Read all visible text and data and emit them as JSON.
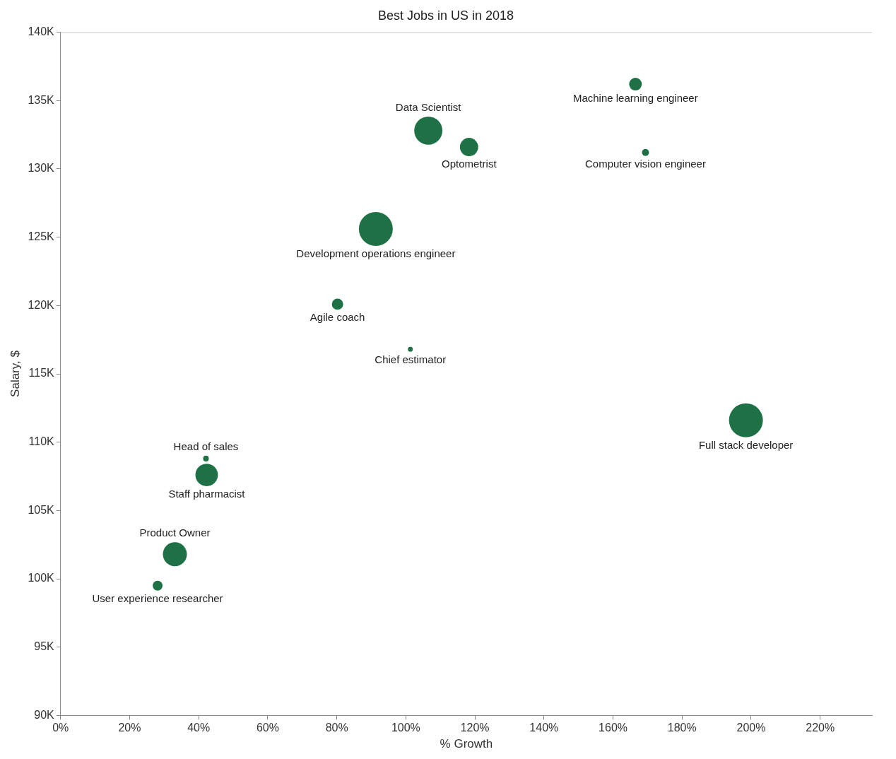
{
  "chart_data": {
    "type": "bubble",
    "title": "Best Jobs in US in 2018",
    "xlabel": "% Growth",
    "ylabel": "Salary, $",
    "series": [
      {
        "color": "#1e7145",
        "x": [
          106.5,
          118.3,
          166.5,
          169.4,
          91.3,
          80.2,
          101.3,
          198.5,
          42.1,
          42.3,
          33.1,
          28.1
        ],
        "values": [
          132.8,
          131.6,
          136.2,
          131.2,
          125.6,
          120.1,
          116.8,
          111.6,
          108.8,
          107.6,
          101.8,
          99.5
        ],
        "sizes": [
          0.69,
          0.29,
          0.14,
          0.043,
          1,
          0.11,
          0.021,
          1,
          0.028,
          0.44,
          0.5,
          0.085
        ]
      }
    ],
    "annotations": [
      {
        "text": "Data Scientist",
        "x": 106.5,
        "y": 132.8
      },
      {
        "text": "Optometrist",
        "x": 118.3,
        "y": 131.6
      },
      {
        "text": "Machine learning engineer",
        "x": 166.5,
        "y": 136.2
      },
      {
        "text": "Computer vision engineer",
        "x": 169.4,
        "y": 131.2
      },
      {
        "text": "Development operations engineer",
        "x": 91.3,
        "y": 125.6
      },
      {
        "text": "Agile coach",
        "x": 80.2,
        "y": 120.1
      },
      {
        "text": "Chief estimator",
        "x": 101.3,
        "y": 116.8
      },
      {
        "text": "Full stack developer",
        "x": 198.5,
        "y": 111.6
      },
      {
        "text": "Head of sales",
        "x": 42.1,
        "y": 108.8
      },
      {
        "text": "Staff pharmacist",
        "x": 42.3,
        "y": 107.6
      },
      {
        "text": "Product Owner",
        "x": 33.1,
        "y": 101.8
      },
      {
        "text": "User experience researcher",
        "x": 28.1,
        "y": 99.5
      }
    ],
    "xlim": [
      0,
      235
    ],
    "xticks": [
      {
        "value": 0,
        "label": "0%"
      },
      {
        "value": 20,
        "label": "20%"
      },
      {
        "value": 40,
        "label": "40%"
      },
      {
        "value": 60,
        "label": "60%"
      },
      {
        "value": 80,
        "label": "80%"
      },
      {
        "value": 100,
        "label": "100%"
      },
      {
        "value": 120,
        "label": "120%"
      },
      {
        "value": 140,
        "label": "140%"
      },
      {
        "value": 160,
        "label": "160%"
      },
      {
        "value": 180,
        "label": "180%"
      },
      {
        "value": 200,
        "label": "200%"
      },
      {
        "value": 220,
        "label": "220%"
      }
    ],
    "ylim": [
      90,
      140
    ],
    "yticks": [
      {
        "value": 90,
        "label": "90K"
      },
      {
        "value": 95,
        "label": "95K"
      },
      {
        "value": 100,
        "label": "100K"
      },
      {
        "value": 105,
        "label": "105K"
      },
      {
        "value": 110,
        "label": "110K"
      },
      {
        "value": 115,
        "label": "115K"
      },
      {
        "value": 120,
        "label": "120K"
      },
      {
        "value": 125,
        "label": "125K"
      },
      {
        "value": 130,
        "label": "130K"
      },
      {
        "value": 135,
        "label": "135K"
      },
      {
        "value": 140,
        "label": "140K"
      }
    ],
    "grid": false,
    "legend": false
  }
}
